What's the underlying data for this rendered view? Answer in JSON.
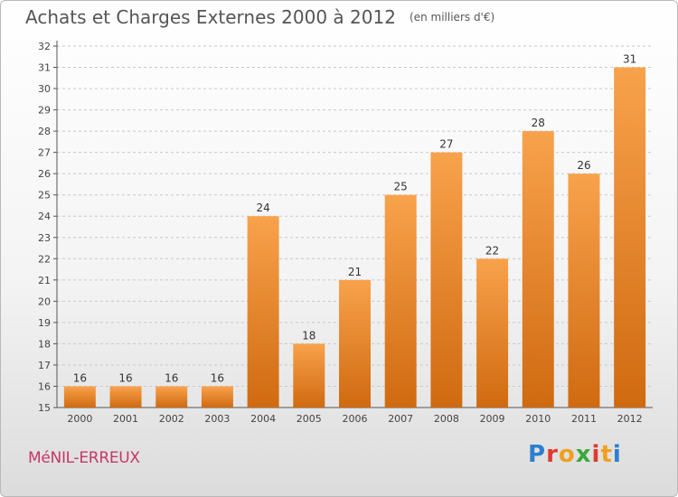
{
  "header": {
    "title": "Achats et Charges Externes 2000 à 2012",
    "unit": "(en milliers d'€)"
  },
  "footer": {
    "commune": "MéNIL-ERREUX",
    "logo": "Proxiti"
  },
  "colors": {
    "bar_light": "#f8a24c",
    "bar_dark": "#d06a10",
    "grid": "#c8c8c8",
    "commune_text": "#c8366a"
  },
  "chart_data": {
    "type": "bar",
    "title": "Achats et Charges Externes 2000 à 2012",
    "subtitle": "(en milliers d'€)",
    "categories": [
      "2000",
      "2001",
      "2002",
      "2003",
      "2004",
      "2005",
      "2006",
      "2007",
      "2008",
      "2009",
      "2010",
      "2011",
      "2012"
    ],
    "values": [
      16,
      16,
      16,
      16,
      24,
      18,
      21,
      25,
      27,
      22,
      28,
      26,
      31
    ],
    "ylim": [
      15,
      32
    ],
    "yticks": [
      15,
      16,
      17,
      18,
      19,
      20,
      21,
      22,
      23,
      24,
      25,
      26,
      27,
      28,
      29,
      30,
      31,
      32
    ],
    "grid": true,
    "legend": "none"
  }
}
